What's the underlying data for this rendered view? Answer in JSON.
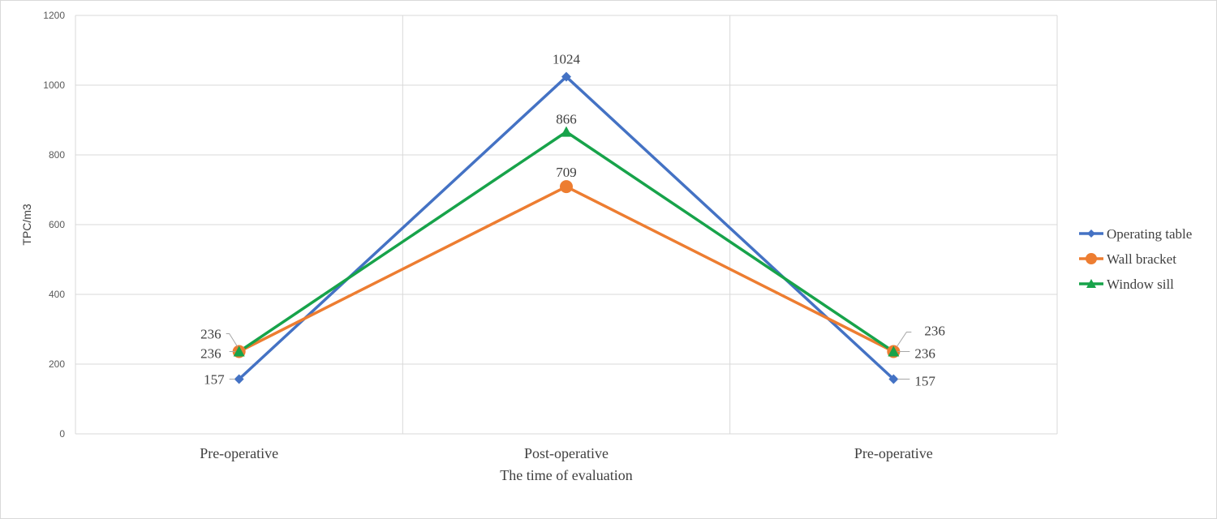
{
  "chart_data": {
    "type": "line",
    "categories": [
      "Pre-operative",
      "Post-operative",
      "Pre-operative"
    ],
    "series": [
      {
        "name": "Operating table",
        "values": [
          157,
          1024,
          157
        ],
        "color": "#4472C4",
        "marker": "diamond"
      },
      {
        "name": "Wall bracket",
        "values": [
          236,
          709,
          236
        ],
        "color": "#ED7D31",
        "marker": "circle"
      },
      {
        "name": "Window sill",
        "values": [
          236,
          866,
          236
        ],
        "color": "#17A34A",
        "marker": "triangle"
      }
    ],
    "xlabel": "The time of evaluation",
    "ylabel": "TPC/m3",
    "ylim": [
      0,
      1200
    ],
    "yticks": [
      0,
      200,
      400,
      600,
      800,
      1000,
      1200
    ],
    "grid": true,
    "legend": "right"
  }
}
